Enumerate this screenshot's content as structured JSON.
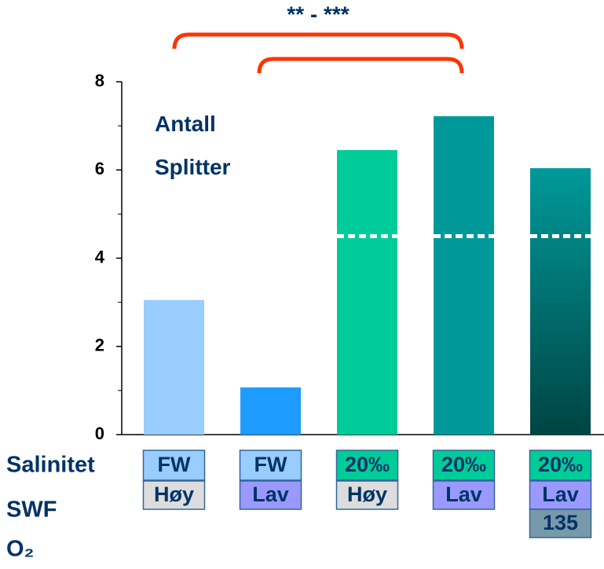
{
  "chart_data": {
    "type": "bar",
    "title": "Antall Splitter",
    "annotation": "** - ***",
    "categories": [
      null,
      null,
      null,
      null,
      null
    ],
    "values": [
      3.05,
      1.07,
      6.45,
      7.22,
      6.04
    ],
    "colors": [
      "#99ccff",
      "#1e9bff",
      "#00cc99",
      "#009999",
      "#009999"
    ],
    "last_gradient_to": "#004444",
    "reference_values": [
      null,
      null,
      4.5,
      4.5,
      4.5
    ],
    "ylim": [
      0,
      8
    ],
    "yticks": [
      0,
      2,
      4,
      6,
      8
    ],
    "yminor": [
      1,
      3,
      5,
      7
    ],
    "row_labels": [
      "Salinitet",
      "SWF",
      "O₂"
    ],
    "rows": [
      [
        "FW",
        "FW",
        "20‰",
        "20‰",
        "20‰"
      ],
      [
        "Høy",
        "Lav",
        "Høy",
        "Lav",
        "Lav"
      ],
      [
        null,
        null,
        null,
        null,
        "135"
      ]
    ],
    "row_colors": [
      [
        "#99ccff",
        "#99ccff",
        "#00cc99",
        "#00cc99",
        "#00cc99"
      ],
      [
        "#dddddd",
        "#9999ff",
        "#dddddd",
        "#9999ff",
        "#9999ff"
      ],
      [
        null,
        null,
        null,
        null,
        "#7799aa"
      ]
    ]
  }
}
